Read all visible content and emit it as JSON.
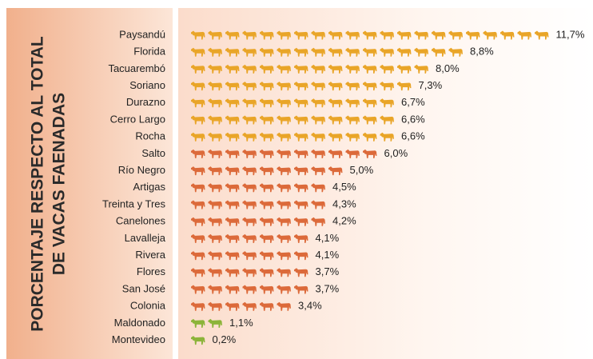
{
  "chart_data": {
    "type": "pictogram",
    "ylabel": [
      "PORCENTAJE RESPECTO AL TOTAL",
      "DE VACAS FAENADAS"
    ],
    "categories": [
      "Paysandú",
      "Florida",
      "Tacuarembó",
      "Soriano",
      "Durazno",
      "Cerro Largo",
      "Rocha",
      "Salto",
      "Río Negro",
      "Artigas",
      "Treinta y Tres",
      "Canelones",
      "Lavalleja",
      "Rivera",
      "Flores",
      "San José",
      "Colonia",
      "Maldonado",
      "Montevideo"
    ],
    "values": [
      11.7,
      8.8,
      8.0,
      7.3,
      6.7,
      6.6,
      6.6,
      6.0,
      5.0,
      4.5,
      4.3,
      4.2,
      4.1,
      4.1,
      3.7,
      3.7,
      3.4,
      1.1,
      0.2
    ],
    "value_labels": [
      "11,7%",
      "8,8%",
      "8,0%",
      "7,3%",
      "6,7%",
      "6,6%",
      "6,6%",
      "6,0%",
      "5,0%",
      "4,5%",
      "4,3%",
      "4,2%",
      "4,1%",
      "4,1%",
      "3,7%",
      "3,7%",
      "3,4%",
      "1,1%",
      "0,2%"
    ],
    "colors": [
      "#e9a528",
      "#e9a528",
      "#e9a528",
      "#e9a528",
      "#e9a528",
      "#e9a528",
      "#e9a528",
      "#dc6a3a",
      "#dc6a3a",
      "#dc6a3a",
      "#dc6a3a",
      "#dc6a3a",
      "#dc6a3a",
      "#dc6a3a",
      "#dc6a3a",
      "#dc6a3a",
      "#dc6a3a",
      "#8cb43a",
      "#8cb43a"
    ]
  }
}
